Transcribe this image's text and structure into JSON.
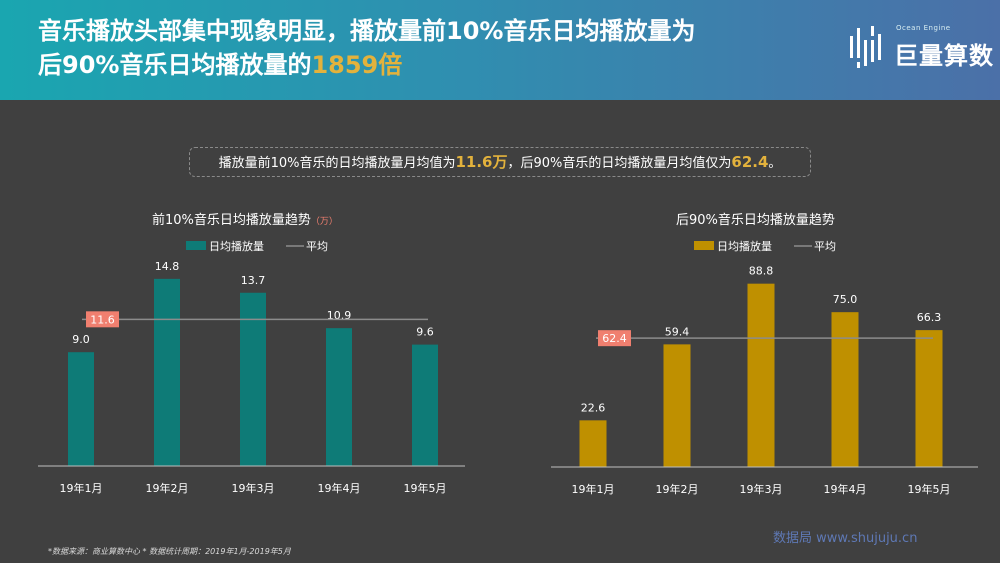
{
  "header": {
    "title_line1": "音乐播放头部集中现象明显，播放量前10%音乐日均播放量为",
    "title_line2_prefix": "后90%音乐日均播放量的",
    "title_line2_highlight": "1859倍"
  },
  "logo": {
    "small_text": "Ocean Engine",
    "text": "巨量算数",
    "icon": "sound-wave-icon"
  },
  "summary": {
    "part1": "播放量前10%音乐的日均播放量月均值为",
    "value1": "11.6万",
    "part2": "，后90%音乐的日均播放量月均值仅为",
    "value2": "62.4",
    "part3": "。"
  },
  "chart_data": [
    {
      "type": "bar",
      "title": "前10%音乐日均播放量趋势",
      "unit": "（万）",
      "categories": [
        "19年1月",
        "19年2月",
        "19年3月",
        "19年4月",
        "19年5月"
      ],
      "series": [
        {
          "name": "日均播放量",
          "values": [
            9.0,
            14.8,
            13.7,
            10.9,
            9.6
          ],
          "color": "#0e7b77"
        }
      ],
      "average": {
        "name": "平均",
        "value": 11.6,
        "label": "11.6",
        "color": "#8c8c8c"
      },
      "value_labels": [
        "9.0",
        "14.8",
        "13.7",
        "10.9",
        "9.6"
      ],
      "ylim": [
        0,
        15.5
      ],
      "legend": "top-center",
      "grid": false
    },
    {
      "type": "bar",
      "title": "后90%音乐日均播放量趋势",
      "unit": "",
      "categories": [
        "19年1月",
        "19年2月",
        "19年3月",
        "19年4月",
        "19年5月"
      ],
      "series": [
        {
          "name": "日均播放量",
          "values": [
            22.6,
            59.4,
            88.8,
            75.0,
            66.3
          ],
          "color": "#bf9000"
        }
      ],
      "average": {
        "name": "平均",
        "value": 62.4,
        "label": "62.4",
        "color": "#8c8c8c"
      },
      "value_labels": [
        "22.6",
        "59.4",
        "88.8",
        "75.0",
        "66.3"
      ],
      "ylim": [
        0,
        93
      ],
      "legend": "top-center",
      "grid": false
    }
  ],
  "footnote": "*数据来源：商业算数中心 * 数据统计周期：2019年1月-2019年5月",
  "watermark": "数据局 www.shujuju.cn",
  "colors": {
    "avg_badge": "#f07f6f",
    "highlight": "#e3b23c"
  }
}
